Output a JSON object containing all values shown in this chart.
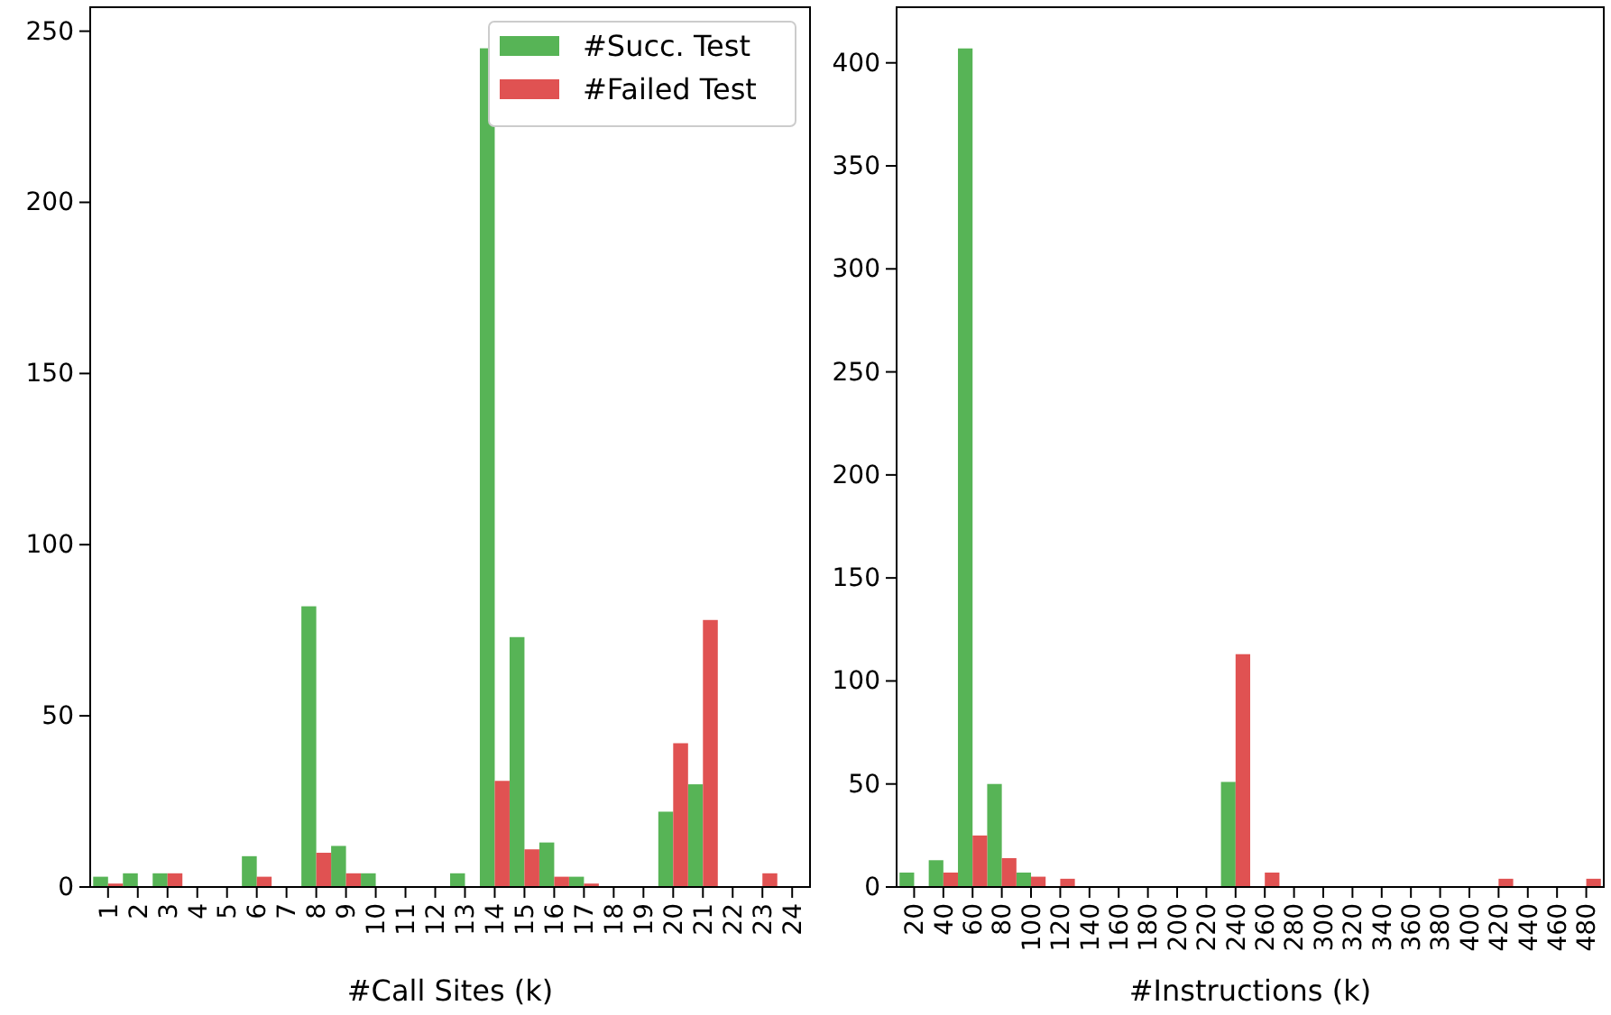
{
  "chart_data": [
    {
      "type": "bar",
      "xlabel": "#Call Sites (k)",
      "categories": [
        "1",
        "2",
        "3",
        "4",
        "5",
        "6",
        "7",
        "8",
        "9",
        "10",
        "11",
        "12",
        "13",
        "14",
        "15",
        "16",
        "17",
        "18",
        "19",
        "20",
        "21",
        "22",
        "23",
        "24"
      ],
      "series": [
        {
          "name": "#Succ. Test",
          "color": "#57b456",
          "values": [
            3,
            4,
            4,
            0,
            0,
            9,
            0,
            82,
            12,
            4,
            0,
            0,
            4,
            245,
            73,
            13,
            3,
            0,
            0,
            22,
            30,
            0,
            0,
            0
          ]
        },
        {
          "name": "#Failed Test",
          "color": "#e05252",
          "values": [
            1,
            0,
            4,
            0,
            0,
            3,
            0,
            10,
            4,
            0,
            0,
            0,
            0,
            31,
            11,
            3,
            1,
            0,
            0,
            42,
            78,
            0,
            4,
            0
          ]
        }
      ],
      "ylim": [
        0,
        257
      ],
      "yticks": [
        0,
        50,
        100,
        150,
        200,
        250
      ],
      "legend": "top right"
    },
    {
      "type": "bar",
      "xlabel": "#Instructions (k)",
      "categories": [
        "20",
        "40",
        "60",
        "80",
        "100",
        "120",
        "140",
        "160",
        "180",
        "200",
        "220",
        "240",
        "260",
        "280",
        "300",
        "320",
        "340",
        "360",
        "380",
        "400",
        "420",
        "440",
        "460",
        "480"
      ],
      "series": [
        {
          "color": "#57b456",
          "values": [
            7,
            13,
            407,
            50,
            7,
            0,
            0,
            0,
            0,
            0,
            0,
            51,
            0,
            0,
            0,
            0,
            0,
            0,
            0,
            0,
            0,
            0,
            0,
            0
          ]
        },
        {
          "color": "#e05252",
          "values": [
            0,
            7,
            25,
            14,
            5,
            4,
            0,
            0,
            0,
            0,
            0,
            113,
            7,
            0,
            0,
            0,
            0,
            0,
            0,
            0,
            4,
            0,
            0,
            4
          ]
        }
      ],
      "ylim": [
        0,
        427
      ],
      "yticks": [
        0,
        50,
        100,
        150,
        200,
        250,
        300,
        350,
        400
      ]
    }
  ]
}
